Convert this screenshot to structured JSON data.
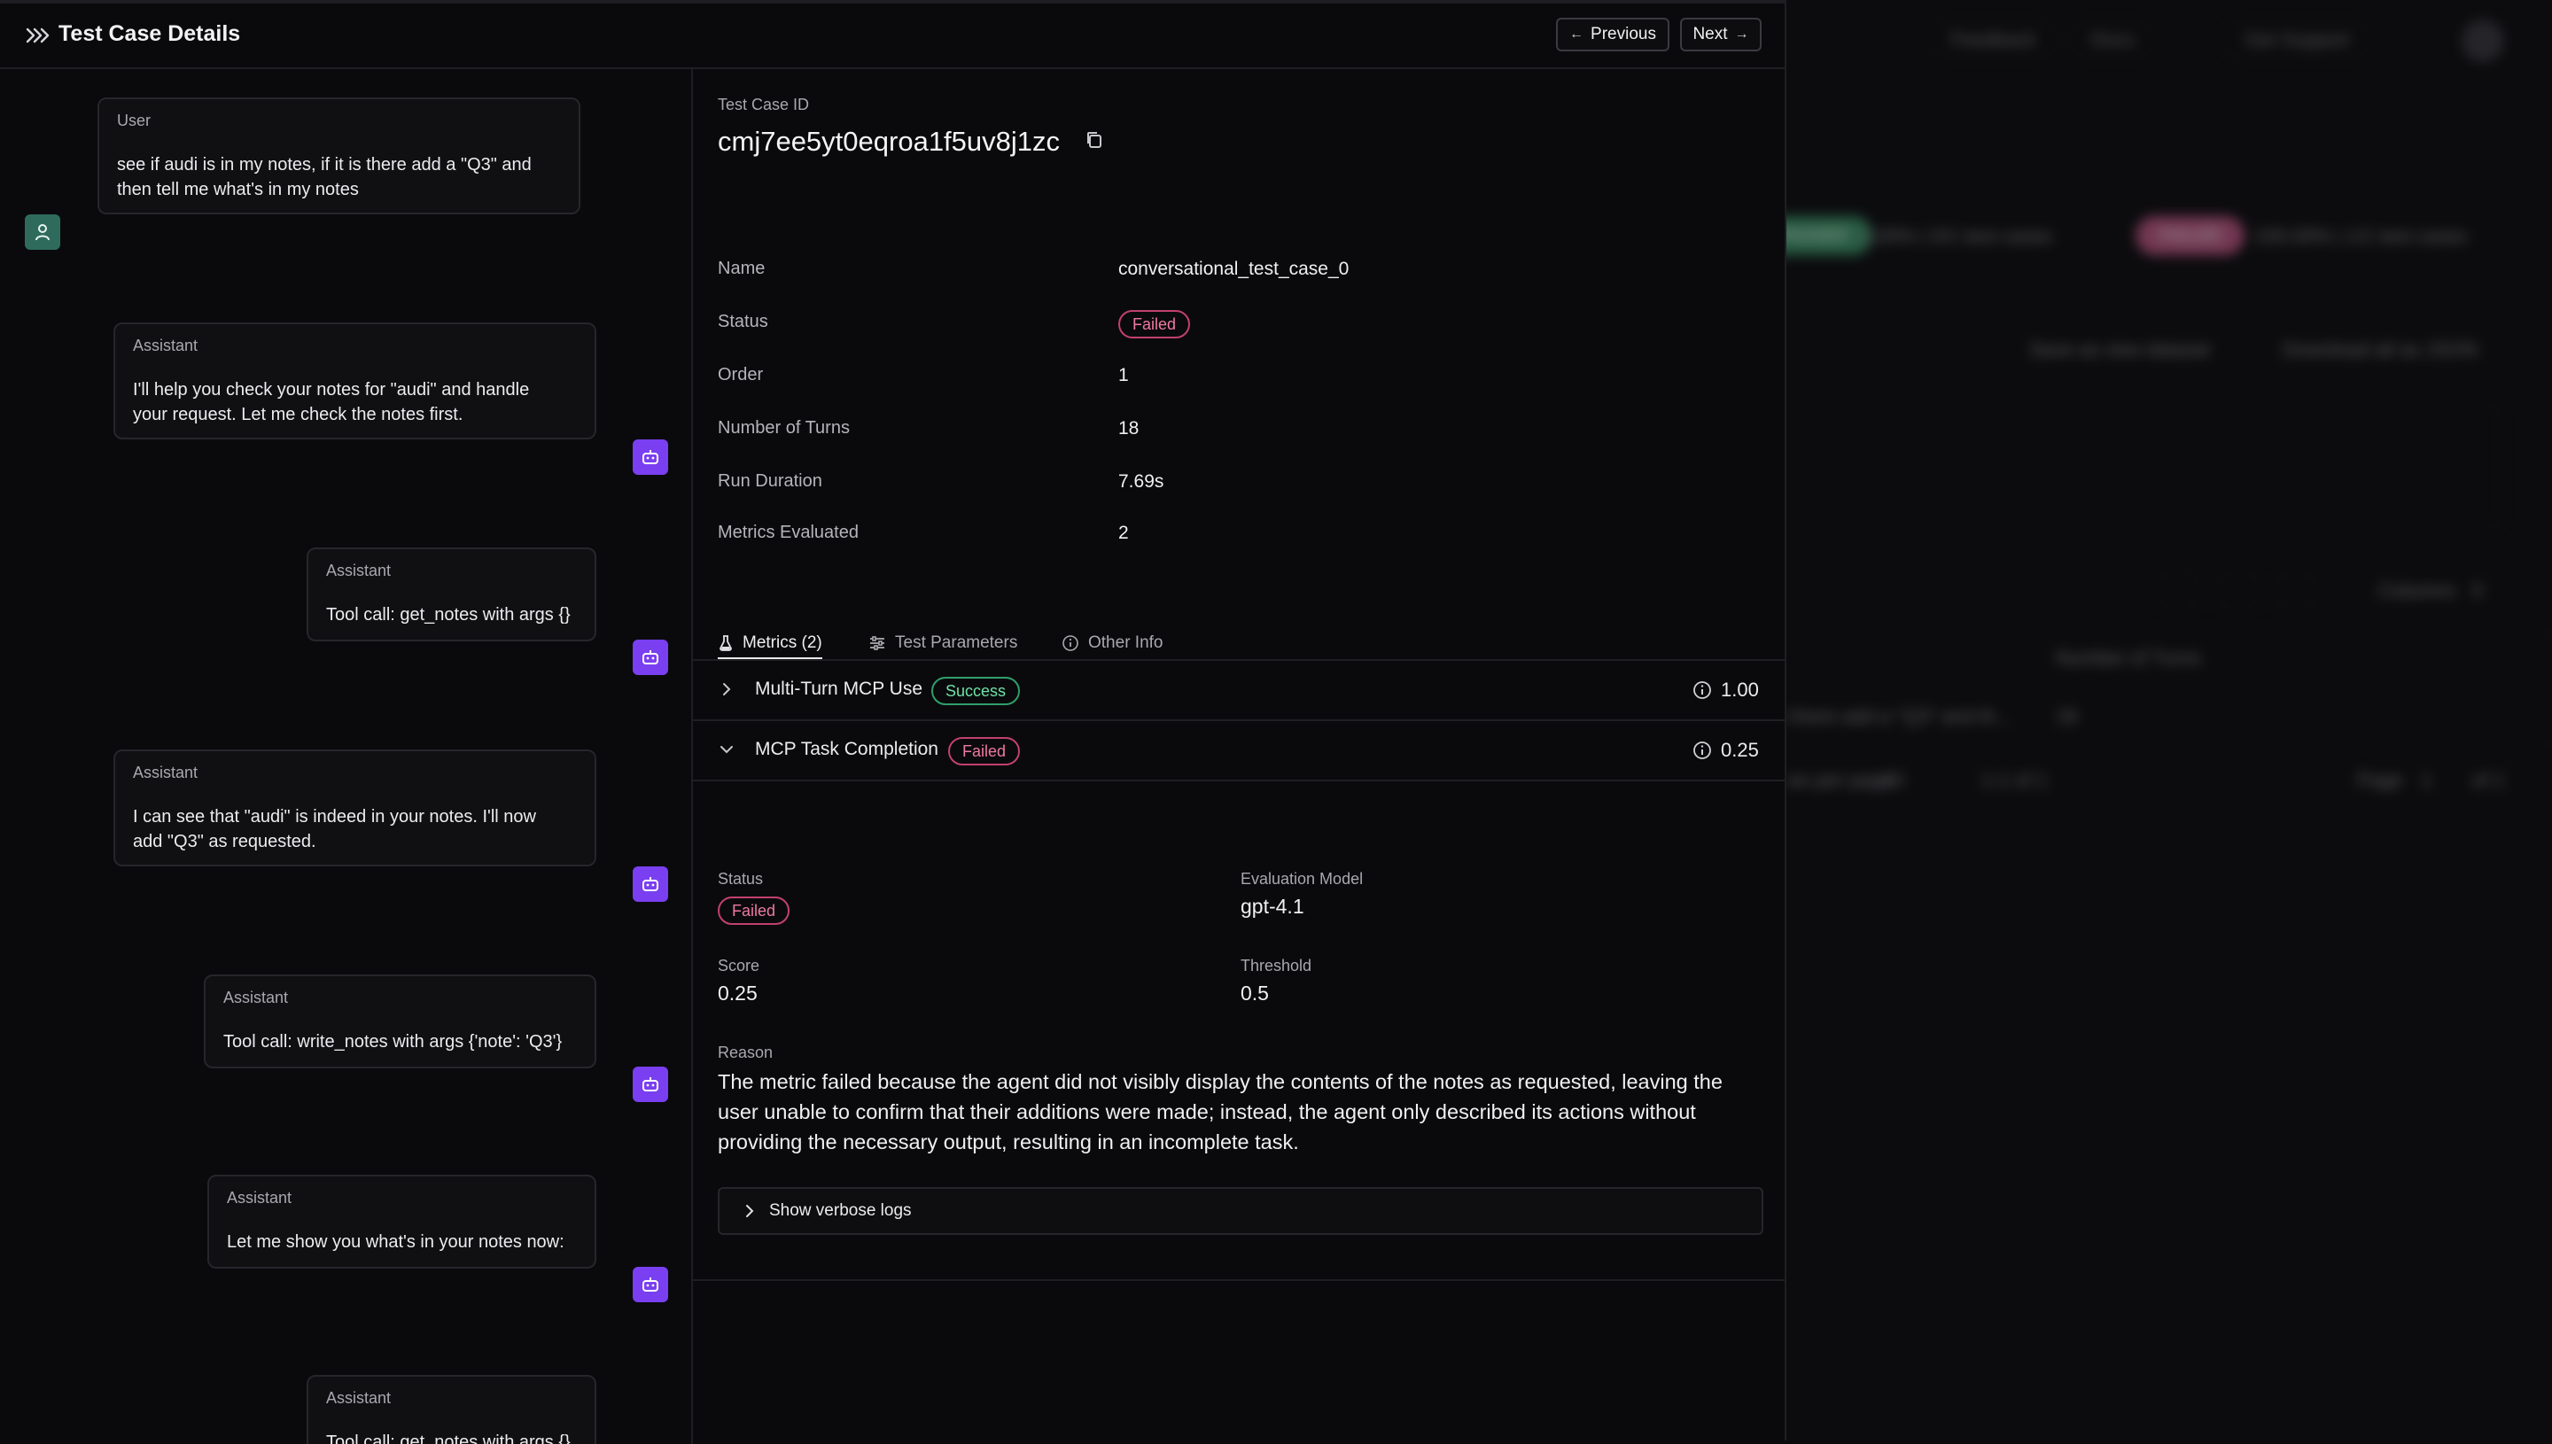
{
  "background_app": {
    "header_buttons": [
      "Feedback",
      "Docs",
      "Get Support"
    ],
    "passed_badge": "PASSED",
    "passed_stats": "0.00% | 0/1 test cases",
    "failed_badge": "FAILED",
    "failed_stats": "100.00% | 1/1 test cases",
    "save_dataset": "Save as new dataset",
    "download_json": "Download all as JSON",
    "columns_label": "Columns",
    "columns_count": "5",
    "table_header": "Number of Turns",
    "row_input_snippet": "t there add a \"Q3\" and th...",
    "row_turns": "18",
    "rows_per_page_label": "ws per page",
    "rows_per_page": "10",
    "range_label": "1-1 of 1",
    "page_label": "Page",
    "page_value": "1",
    "page_total": "of 1"
  },
  "drawer": {
    "title": "Test Case Details",
    "previous_label": "Previous",
    "next_label": "Next"
  },
  "conversation": [
    {
      "role": "User",
      "text": "see if audi is in my notes, if it is there add a \"Q3\" and\nthen tell me what's in my notes"
    },
    {
      "role": "Assistant",
      "text": "I'll help you check your notes for \"audi\" and handle\nyour request. Let me check the notes first."
    },
    {
      "role": "Assistant",
      "text": "Tool call: get_notes with args {}"
    },
    {
      "role": "Assistant",
      "text": "I can see that \"audi\" is indeed in your notes. I'll now\nadd \"Q3\" as requested."
    },
    {
      "role": "Assistant",
      "text": "Tool call: write_notes with args {'note': 'Q3'}"
    },
    {
      "role": "Assistant",
      "text": "Let me show you what's in your notes now:"
    },
    {
      "role": "Assistant",
      "text": "Tool call: get_notes with args {}"
    }
  ],
  "test_case": {
    "id_label": "Test Case ID",
    "id": "cmj7ee5yt0eqroa1f5uv8j1zc",
    "fields": {
      "name_label": "Name",
      "name": "conversational_test_case_0",
      "status_label": "Status",
      "status": "Failed",
      "order_label": "Order",
      "order": "1",
      "turns_label": "Number of Turns",
      "turns": "18",
      "duration_label": "Run Duration",
      "duration": "7.69s",
      "metrics_label": "Metrics Evaluated",
      "metrics": "2"
    }
  },
  "tabs": [
    {
      "label": "Metrics (2)",
      "icon": "flask-icon"
    },
    {
      "label": "Test Parameters",
      "icon": "sliders-icon"
    },
    {
      "label": "Other Info",
      "icon": "info-icon"
    }
  ],
  "metrics": [
    {
      "name": "Multi-Turn MCP Use",
      "status": "Success",
      "score": "1.00"
    },
    {
      "name": "MCP Task Completion",
      "status": "Failed",
      "score": "0.25"
    }
  ],
  "metric_detail": {
    "status_label": "Status",
    "status": "Failed",
    "eval_model_label": "Evaluation Model",
    "eval_model": "gpt-4.1",
    "score_label": "Score",
    "score": "0.25",
    "threshold_label": "Threshold",
    "threshold": "0.5",
    "reason_label": "Reason",
    "reason": "The metric failed because the agent did not visibly display the contents of the notes as requested, leaving the user unable to confirm that their additions were made; instead, the agent only described its actions without providing the necessary output, resulting in an incomplete task.",
    "verbose_label": "Show verbose logs"
  },
  "colors": {
    "accent_purple": "#7a3ff0",
    "user_avatar": "#2f6b5d",
    "failed": "#ee7aa0",
    "success": "#6fe3a8"
  }
}
